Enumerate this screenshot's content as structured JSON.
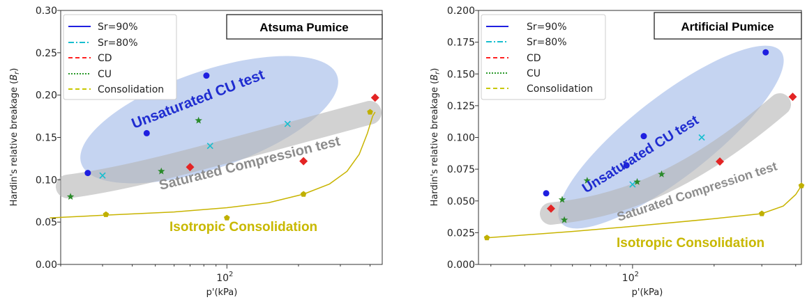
{
  "chart_data": [
    {
      "type": "scatter",
      "title": "Atsuma Pumice",
      "xlabel": "p'(kPa)",
      "ylabel": "Hardin's relative breakage (B_r)",
      "xscale": "log",
      "xlim": [
        20,
        450
      ],
      "ylim": [
        0,
        0.3
      ],
      "yticks": [
        "0.00",
        "0.05",
        "0.10",
        "0.15",
        "0.20",
        "0.25",
        "0.30"
      ],
      "xtick_label": "10^2",
      "legend": {
        "placement": "top-left",
        "entries": [
          {
            "label": "Sr=90%",
            "style": "solid",
            "color": "#1f1fe0"
          },
          {
            "label": "Sr=80%",
            "style": "dashdot",
            "color": "#17becf"
          },
          {
            "label": "CD",
            "style": "dashed",
            "color": "#ff2020"
          },
          {
            "label": "CU",
            "style": "dotted",
            "color": "#2a9a2a"
          },
          {
            "label": "Consolidation",
            "style": "dashed",
            "color": "#c8c800"
          }
        ]
      },
      "series": [
        {
          "name": "Sr=90%",
          "marker": "circle",
          "color": "#1f1fe0",
          "x": [
            26,
            46,
            82
          ],
          "y": [
            0.108,
            0.155,
            0.223
          ]
        },
        {
          "name": "Sr=80%",
          "marker": "x",
          "color": "#17becf",
          "x": [
            30,
            85,
            180
          ],
          "y": [
            0.105,
            0.14,
            0.166
          ]
        },
        {
          "name": "CD",
          "marker": "diamond",
          "color": "#e32424",
          "x": [
            70,
            210,
            420
          ],
          "y": [
            0.115,
            0.122,
            0.197
          ]
        },
        {
          "name": "CU",
          "marker": "star",
          "color": "#2a8a2a",
          "x": [
            22,
            53,
            76
          ],
          "y": [
            0.08,
            0.11,
            0.17
          ]
        },
        {
          "name": "Consolidation",
          "marker": "pentagon",
          "color": "#c0b000",
          "x": [
            31,
            100,
            210,
            400
          ],
          "y": [
            0.059,
            0.055,
            0.083,
            0.18
          ]
        }
      ],
      "curve": {
        "color": "#c8b400",
        "x": [
          18,
          30,
          60,
          100,
          150,
          210,
          270,
          320,
          360,
          390,
          410,
          420
        ],
        "y": [
          0.055,
          0.058,
          0.062,
          0.067,
          0.073,
          0.083,
          0.095,
          0.11,
          0.13,
          0.155,
          0.175,
          0.18
        ]
      },
      "annotations": [
        {
          "text": "Unsaturated CU test",
          "color": "#1f2cd0"
        },
        {
          "text": "Saturated Compression test",
          "color": "#8c8c8c"
        },
        {
          "text": "Isotropic Consolidation",
          "color": "#c8b800"
        }
      ]
    },
    {
      "type": "scatter",
      "title": "Artificial Pumice",
      "xlabel": "p'(kPa)",
      "ylabel": "Hardin's relative breakage (B_r)",
      "xscale": "log",
      "xlim": [
        27,
        420
      ],
      "ylim": [
        0,
        0.2
      ],
      "yticks": [
        "0.000",
        "0.025",
        "0.050",
        "0.075",
        "0.100",
        "0.125",
        "0.150",
        "0.175",
        "0.200"
      ],
      "xtick_label": "10^2",
      "legend": {
        "placement": "top-left",
        "entries": [
          {
            "label": "Sr=90%",
            "style": "solid",
            "color": "#1f1fe0"
          },
          {
            "label": "Sr=80%",
            "style": "dashdot",
            "color": "#17becf"
          },
          {
            "label": "CD",
            "style": "dashed",
            "color": "#ff2020"
          },
          {
            "label": "CU",
            "style": "dotted",
            "color": "#2a9a2a"
          },
          {
            "label": "Consolidation",
            "style": "dashed",
            "color": "#c8c800"
          }
        ]
      },
      "series": [
        {
          "name": "Sr=90%",
          "marker": "circle",
          "color": "#1f1fe0",
          "x": [
            48,
            95,
            110,
            310
          ],
          "y": [
            0.056,
            0.078,
            0.101,
            0.167
          ]
        },
        {
          "name": "Sr=80%",
          "marker": "x",
          "color": "#17becf",
          "x": [
            100,
            180
          ],
          "y": [
            0.063,
            0.1
          ]
        },
        {
          "name": "CD",
          "marker": "diamond",
          "color": "#e32424",
          "x": [
            50,
            210,
            390
          ],
          "y": [
            0.044,
            0.081,
            0.132
          ]
        },
        {
          "name": "CU",
          "marker": "star",
          "color": "#2a8a2a",
          "x": [
            55,
            56,
            68,
            104,
            128
          ],
          "y": [
            0.051,
            0.035,
            0.066,
            0.065,
            0.071
          ]
        },
        {
          "name": "Consolidation",
          "marker": "pentagon",
          "color": "#c0b000",
          "x": [
            29,
            300,
            420
          ],
          "y": [
            0.021,
            0.04,
            0.062
          ]
        }
      ],
      "curve": {
        "color": "#c8b400",
        "x": [
          29,
          60,
          100,
          200,
          300,
          360,
          400,
          420
        ],
        "y": [
          0.021,
          0.026,
          0.03,
          0.036,
          0.04,
          0.046,
          0.055,
          0.062
        ]
      },
      "annotations": [
        {
          "text": "Unsaturated CU test",
          "color": "#1f2cd0"
        },
        {
          "text": "Saturated Compression test",
          "color": "#8c8c8c"
        },
        {
          "text": "Isotropic Consolidation",
          "color": "#c8b800"
        }
      ]
    }
  ]
}
